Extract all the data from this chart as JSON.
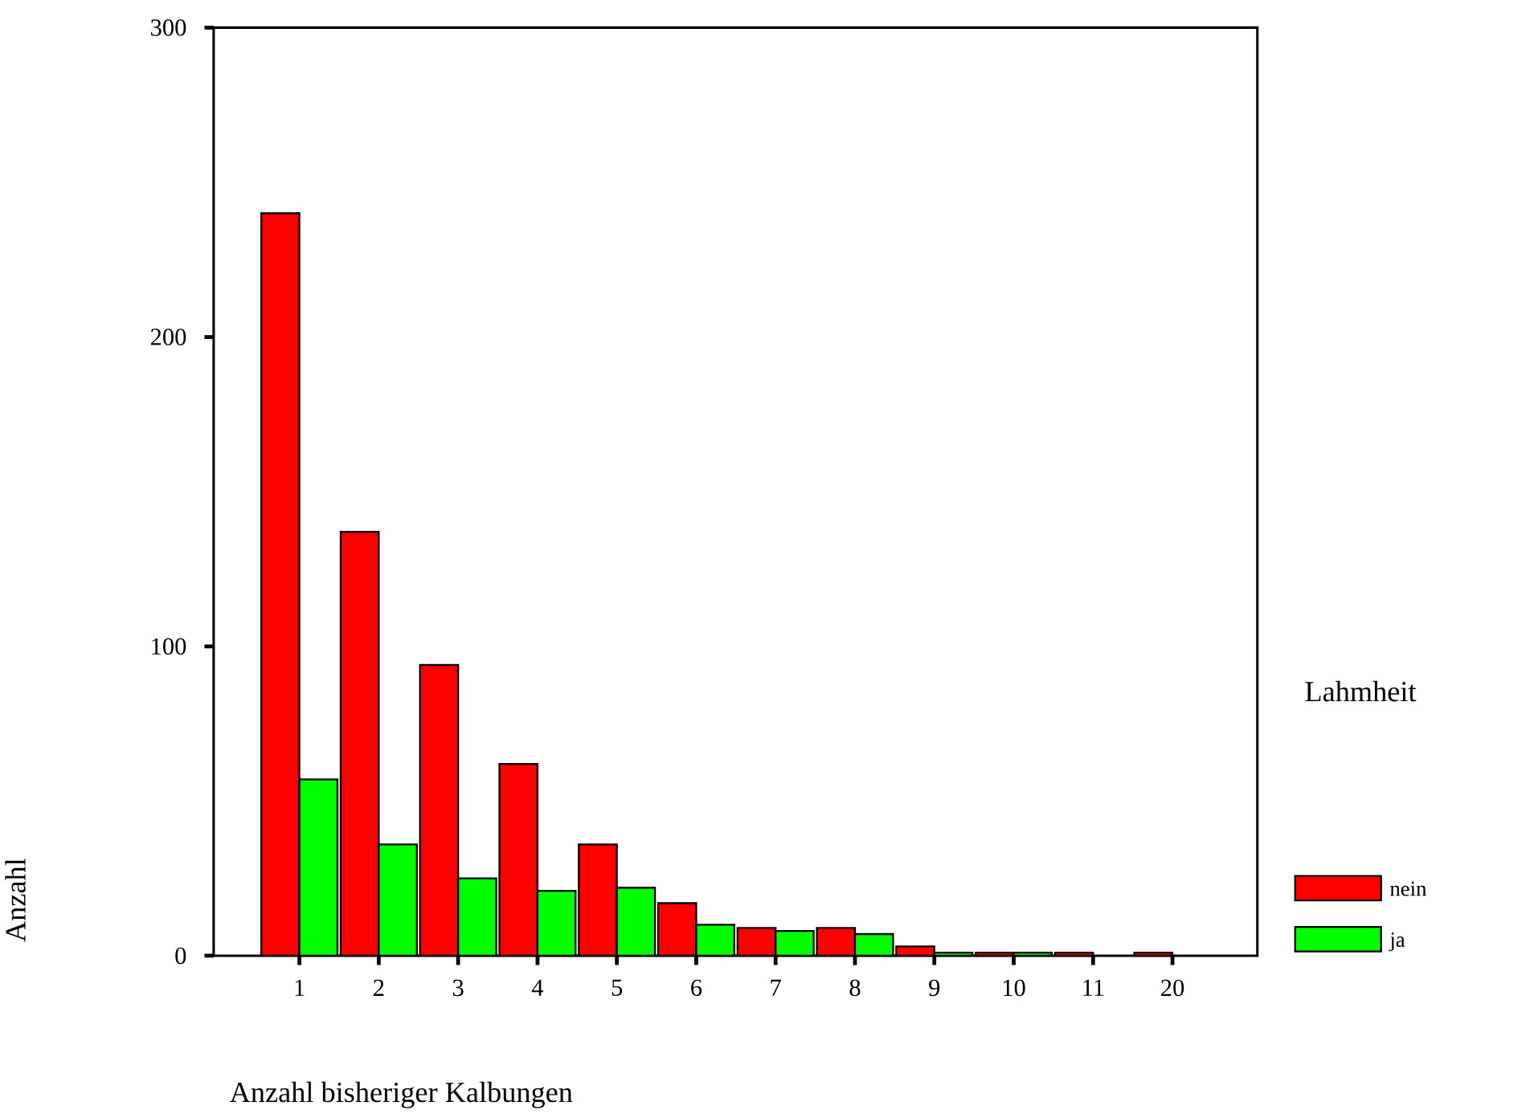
{
  "chart_data": {
    "type": "bar",
    "xlabel": "Anzahl bisheriger Kalbungen",
    "ylabel": "Anzahl",
    "legend_title": "Lahmheit",
    "legend": "right",
    "categories": [
      "1",
      "2",
      "3",
      "4",
      "5",
      "6",
      "7",
      "8",
      "9",
      "10",
      "11",
      "20"
    ],
    "series": [
      {
        "name": "nein",
        "color": "#ff0000",
        "values": [
          240,
          137,
          94,
          62,
          36,
          17,
          9,
          9,
          3,
          1,
          1,
          1
        ]
      },
      {
        "name": "ja",
        "color": "#00ff00",
        "values": [
          57,
          36,
          25,
          21,
          22,
          10,
          8,
          7,
          1,
          1,
          0,
          0
        ]
      }
    ],
    "ylim": [
      0,
      300
    ],
    "yticks": [
      0,
      100,
      200,
      300
    ],
    "grid": false
  }
}
